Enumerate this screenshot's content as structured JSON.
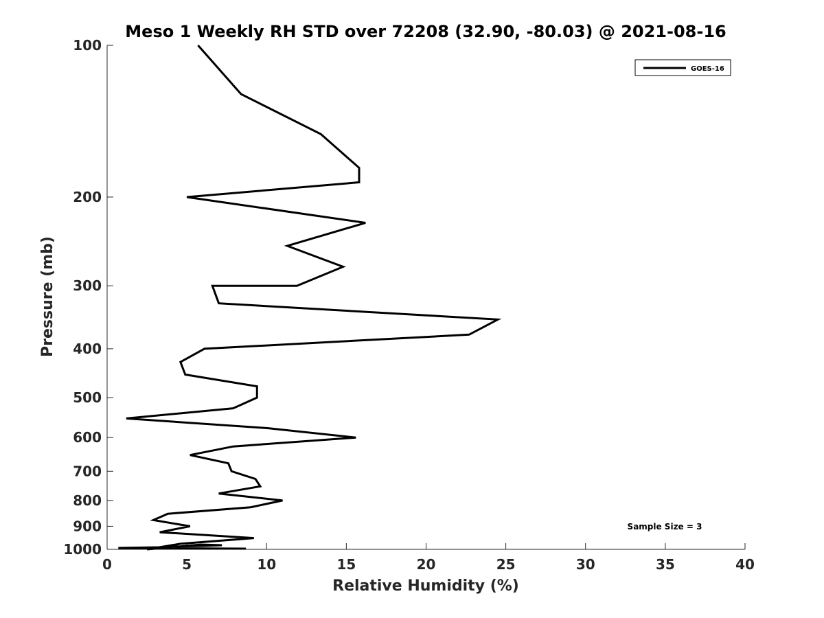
{
  "chart_data": {
    "type": "line",
    "title": "Meso 1 Weekly RH STD over 72208 (32.90, -80.03) @ 2021-08-16",
    "xlabel": "Relative Humidity (%)",
    "ylabel": "Pressure (mb)",
    "xlim": [
      0,
      40
    ],
    "ylim": [
      100,
      1000
    ],
    "y_scale": "log",
    "y_reversed": true,
    "x_ticks": [
      0,
      5,
      10,
      15,
      20,
      25,
      30,
      35,
      40
    ],
    "y_ticks": [
      100,
      200,
      300,
      400,
      500,
      600,
      700,
      800,
      900,
      1000
    ],
    "grid": false,
    "legend": "top-right",
    "annotation": "Sample Size = 3",
    "series": [
      {
        "name": "GOES-16",
        "color": "#000000",
        "points": [
          [
            5.7,
            100
          ],
          [
            8.4,
            125
          ],
          [
            13.4,
            150
          ],
          [
            15.8,
            175
          ],
          [
            15.8,
            187
          ],
          [
            5.0,
            200
          ],
          [
            16.2,
            225
          ],
          [
            11.3,
            250
          ],
          [
            14.8,
            275
          ],
          [
            11.9,
            300
          ],
          [
            6.6,
            300
          ],
          [
            7.0,
            325
          ],
          [
            24.5,
            350
          ],
          [
            22.7,
            375
          ],
          [
            6.1,
            400
          ],
          [
            4.6,
            425
          ],
          [
            4.9,
            450
          ],
          [
            9.4,
            475
          ],
          [
            9.4,
            500
          ],
          [
            7.9,
            525
          ],
          [
            1.2,
            550
          ],
          [
            10.1,
            575
          ],
          [
            15.6,
            600
          ],
          [
            7.9,
            625
          ],
          [
            5.2,
            650
          ],
          [
            7.6,
            675
          ],
          [
            7.8,
            700
          ],
          [
            9.3,
            725
          ],
          [
            9.6,
            750
          ],
          [
            7.0,
            775
          ],
          [
            11.0,
            800
          ],
          [
            9.0,
            825
          ],
          [
            3.8,
            850
          ],
          [
            2.9,
            875
          ],
          [
            5.2,
            900
          ],
          [
            3.3,
            925
          ],
          [
            9.2,
            950
          ],
          [
            4.6,
            975
          ],
          [
            2.5,
            1000
          ],
          [
            5.9,
            1010
          ],
          [
            7.2,
            1020
          ],
          [
            6.0,
            1030
          ],
          [
            3.7,
            1040
          ],
          [
            3.3,
            1050
          ],
          [
            0.7,
            1060
          ],
          [
            8.7,
            1070
          ]
        ]
      }
    ]
  }
}
